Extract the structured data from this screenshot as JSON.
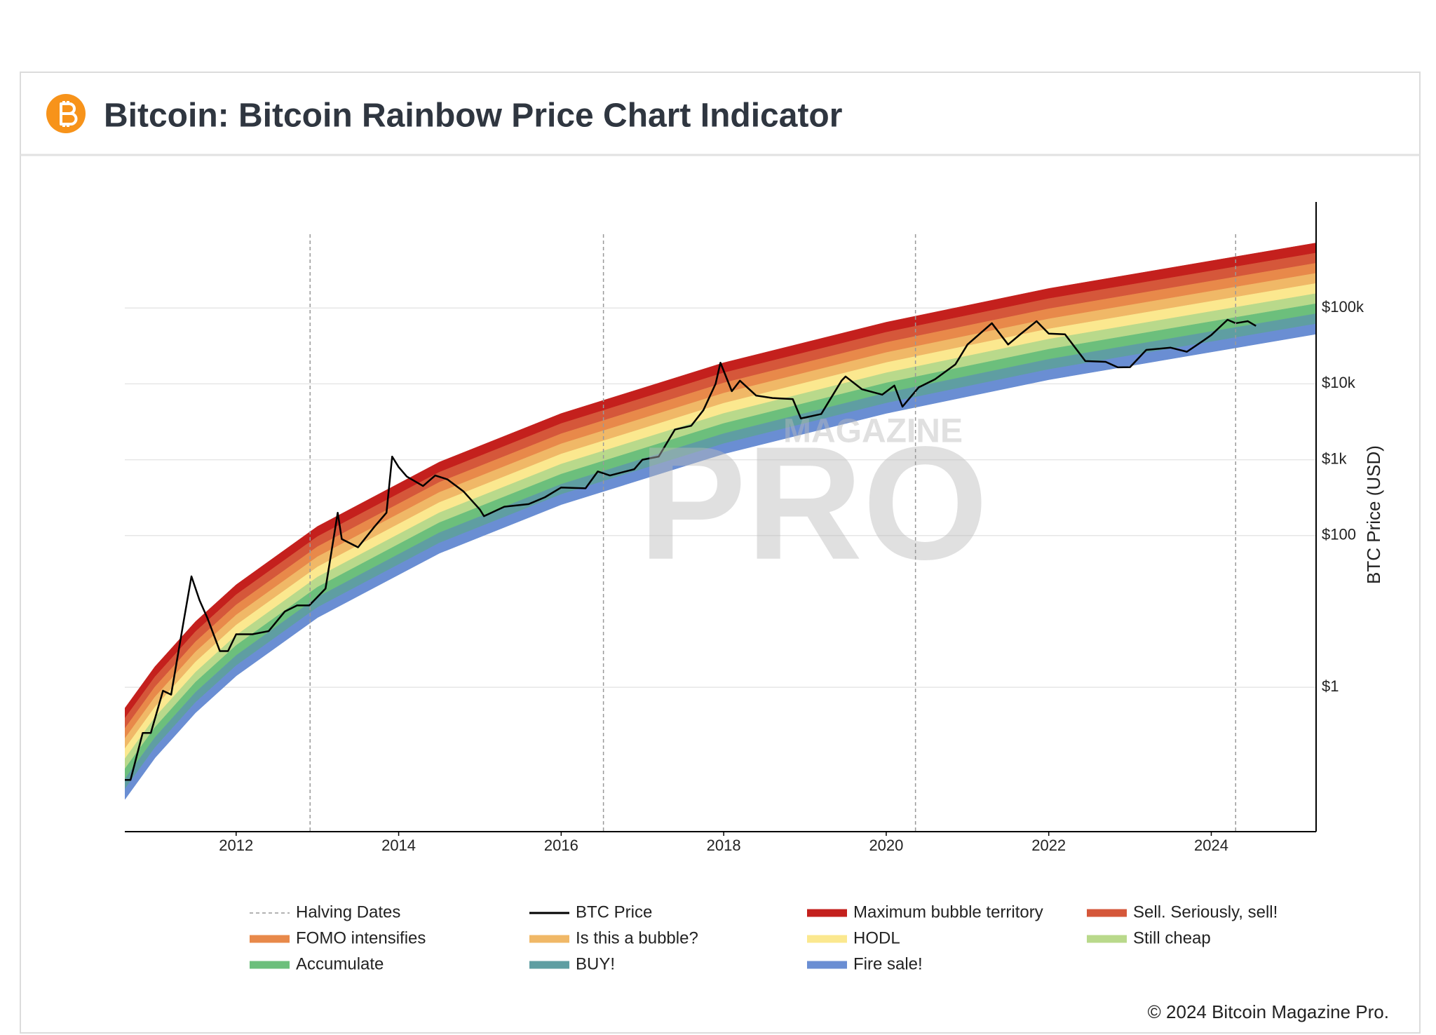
{
  "chart_data": {
    "type": "line",
    "title": "Bitcoin: Bitcoin Rainbow Price Chart Indicator",
    "ylabel": "BTC Price (USD)",
    "copyright": "© 2024 Bitcoin Magazine Pro.",
    "watermark": [
      "MAGAZINE",
      "PRO"
    ],
    "log_y": true,
    "grid": true,
    "legend": "bottom",
    "xlim": [
      2010.63,
      2025.29
    ],
    "xticks": [
      2012,
      2014,
      2016,
      2018,
      2020,
      2022,
      2024
    ],
    "ylim": [
      0.0125,
      2500000
    ],
    "yticks": [
      {
        "value": 1,
        "label": "$1"
      },
      {
        "value": 100,
        "label": "$100"
      },
      {
        "value": 1000,
        "label": "$1k"
      },
      {
        "value": 10000,
        "label": "$10k"
      },
      {
        "value": 100000,
        "label": "$100k"
      }
    ],
    "halvings": {
      "name": "Halving Dates",
      "color": "#999999",
      "x": [
        2012.91,
        2016.52,
        2020.36,
        2024.3
      ]
    },
    "bands": {
      "x": [
        2010.63,
        2011,
        2011.5,
        2012,
        2013,
        2014.5,
        2016,
        2018,
        2020,
        2022,
        2025.29
      ],
      "floor": [
        0.0334,
        0.118,
        0.465,
        1.42,
        8.32,
        58.7,
        257,
        1200,
        4100,
        11400,
        45500
      ],
      "series": [
        {
          "name": "Maximum bubble territory",
          "color": "#c4201d",
          "values": [
            0.53,
            1.87,
            7.36,
            22.5,
            132,
            931,
            4070,
            19000,
            65000,
            181000,
            721000
          ]
        },
        {
          "name": "Sell. Seriously, sell!",
          "color": "#d5573a",
          "values": [
            0.39,
            1.37,
            5.42,
            16.6,
            97,
            685,
            3000,
            14000,
            47900,
            133000,
            531000
          ]
        },
        {
          "name": "FOMO intensifies",
          "color": "#e8894a",
          "values": [
            0.286,
            1.01,
            3.98,
            12.2,
            71.3,
            504,
            2200,
            10300,
            35200,
            97700,
            390000
          ]
        },
        {
          "name": "Is this a bubble?",
          "color": "#f0b867",
          "values": [
            0.211,
            0.743,
            2.93,
            8.97,
            52.5,
            371,
            1620,
            7550,
            25900,
            71900,
            287000
          ]
        },
        {
          "name": "HODL",
          "color": "#fbe88f",
          "values": [
            0.155,
            0.547,
            2.16,
            6.61,
            38.6,
            273,
            1190,
            5560,
            19100,
            53000,
            211000
          ]
        },
        {
          "name": "Still cheap",
          "color": "#b9d98b",
          "values": [
            0.114,
            0.402,
            1.58,
            4.85,
            28.4,
            200,
            877,
            4080,
            14000,
            38900,
            155000
          ]
        },
        {
          "name": "Accumulate",
          "color": "#6cbf7c",
          "values": [
            0.0839,
            0.296,
            1.17,
            3.57,
            20.9,
            148,
            646,
            3010,
            10300,
            28600,
            114000
          ]
        },
        {
          "name": "BUY!",
          "color": "#5f9ea2",
          "values": [
            0.0618,
            0.218,
            0.859,
            2.63,
            15.4,
            109,
            475,
            2210,
            7590,
            21100,
            84100
          ]
        },
        {
          "name": "Fire sale!",
          "color": "#6a8ed3",
          "values": [
            0.0454,
            0.16,
            0.631,
            1.93,
            11.3,
            79.8,
            349,
            1630,
            5570,
            15500,
            61800
          ]
        }
      ]
    },
    "series": [
      {
        "name": "BTC Price",
        "color": "#000000",
        "x": [
          2010.63,
          2010.7,
          2010.85,
          2010.95,
          2011.1,
          2011.2,
          2011.35,
          2011.45,
          2011.55,
          2011.65,
          2011.8,
          2011.9,
          2012.0,
          2012.2,
          2012.4,
          2012.6,
          2012.75,
          2012.9,
          2013.1,
          2013.25,
          2013.3,
          2013.5,
          2013.7,
          2013.85,
          2013.92,
          2014.0,
          2014.1,
          2014.3,
          2014.45,
          2014.6,
          2014.8,
          2015.0,
          2015.05,
          2015.3,
          2015.6,
          2015.8,
          2016.0,
          2016.3,
          2016.45,
          2016.6,
          2016.9,
          2017.0,
          2017.2,
          2017.4,
          2017.6,
          2017.75,
          2017.9,
          2017.96,
          2018.1,
          2018.2,
          2018.4,
          2018.6,
          2018.85,
          2018.95,
          2019.2,
          2019.45,
          2019.5,
          2019.7,
          2019.95,
          2020.1,
          2020.2,
          2020.4,
          2020.6,
          2020.85,
          2021.0,
          2021.3,
          2021.5,
          2021.65,
          2021.85,
          2022.0,
          2022.2,
          2022.45,
          2022.7,
          2022.85,
          2023.0,
          2023.2,
          2023.5,
          2023.7,
          2023.9,
          2024.0,
          2024.2,
          2024.3,
          2024.45,
          2024.55
        ],
        "values": [
          0.06,
          0.06,
          0.25,
          0.25,
          0.9,
          0.8,
          7,
          29,
          14,
          8,
          3,
          3,
          5,
          5,
          5.5,
          10,
          12,
          12,
          20,
          200,
          90,
          70,
          130,
          200,
          1100,
          800,
          600,
          450,
          620,
          550,
          380,
          220,
          180,
          240,
          260,
          320,
          430,
          420,
          700,
          620,
          750,
          1000,
          1100,
          2500,
          2800,
          4500,
          10000,
          19000,
          8000,
          11000,
          7000,
          6500,
          6300,
          3500,
          4000,
          11000,
          12500,
          8500,
          7200,
          9500,
          5000,
          9000,
          11500,
          18000,
          33000,
          63000,
          33000,
          45000,
          67000,
          46000,
          45000,
          20000,
          19500,
          16500,
          16600,
          28000,
          30000,
          26500,
          37000,
          44000,
          70000,
          63000,
          67000,
          58000
        ]
      }
    ]
  }
}
